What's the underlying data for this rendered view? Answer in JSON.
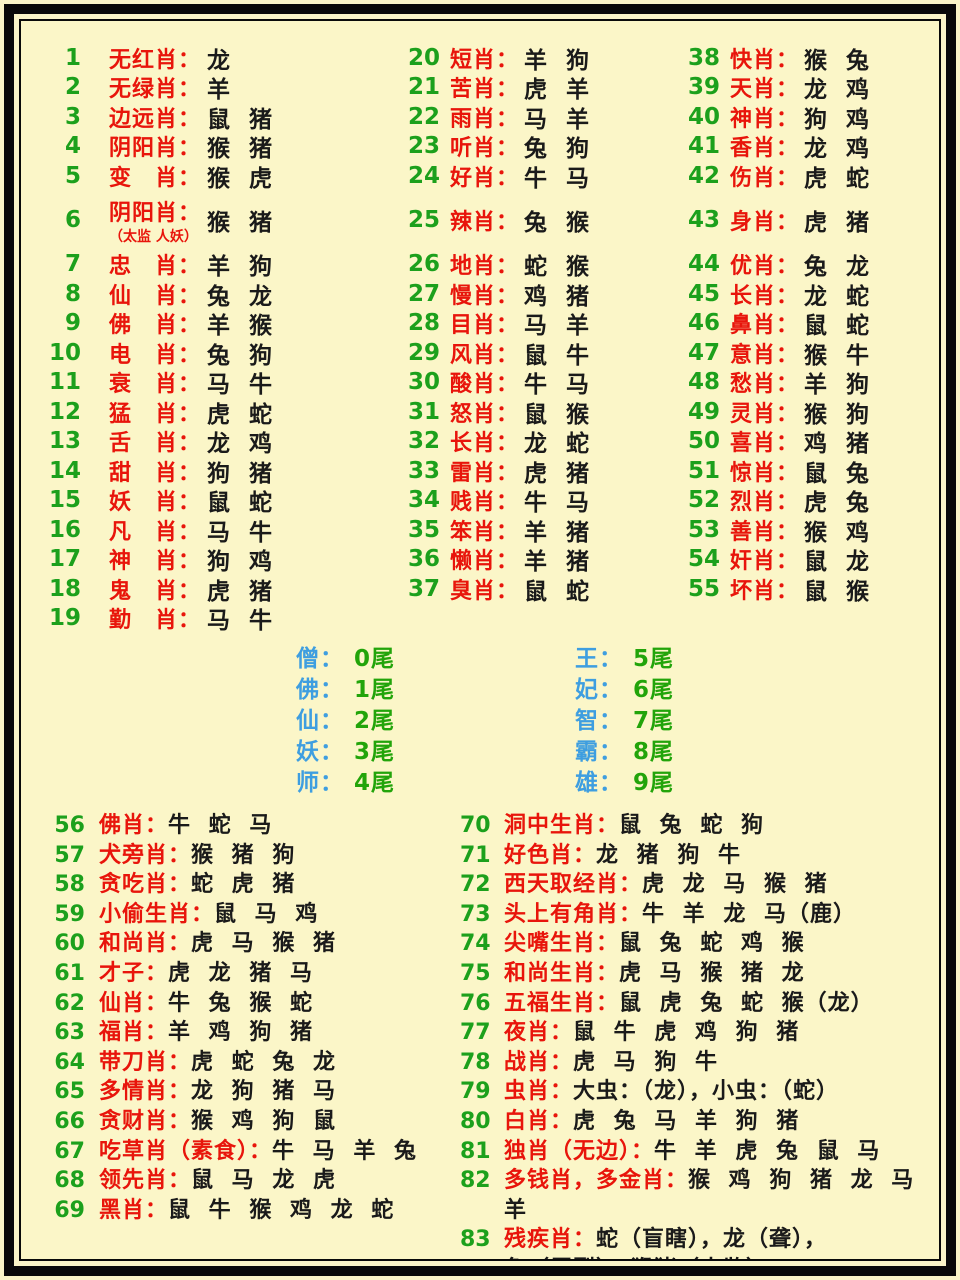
{
  "colors": {
    "background": "#FBF6C8",
    "frame_border": "#0A0A0A",
    "number_green": "#1CA01C",
    "label_red": "#E8150B",
    "value_black": "#1A1A1A",
    "tail_label_blue": "#3E9EE0",
    "tail_value_green": "#22A40A"
  },
  "top_columns": [
    {
      "items": [
        {
          "num": "1",
          "label": "无红肖：",
          "value": "龙"
        },
        {
          "num": "2",
          "label": "无绿肖：",
          "value": "羊"
        },
        {
          "num": "3",
          "label": "边远肖：",
          "value": "鼠 猪"
        },
        {
          "num": "4",
          "label": "阴阳肖：",
          "value": "猴 猪"
        },
        {
          "num": "5",
          "label": "变　肖：",
          "value": "猴 虎"
        },
        {
          "num": "6",
          "label": "阴阳肖：",
          "sub": "（太监 人妖）",
          "value": "猴 猪",
          "special": true
        },
        {
          "num": "7",
          "label": "忠　肖：",
          "value": "羊 狗"
        },
        {
          "num": "8",
          "label": "仙　肖：",
          "value": "兔 龙"
        },
        {
          "num": "9",
          "label": "佛　肖：",
          "value": "羊 猴"
        },
        {
          "num": "10",
          "label": "电　肖：",
          "value": "兔 狗"
        },
        {
          "num": "11",
          "label": "衰　肖：",
          "value": "马 牛"
        },
        {
          "num": "12",
          "label": "猛　肖：",
          "value": "虎 蛇"
        },
        {
          "num": "13",
          "label": "舌　肖：",
          "value": "龙 鸡"
        },
        {
          "num": "14",
          "label": "甜　肖：",
          "value": "狗 猪"
        },
        {
          "num": "15",
          "label": "妖　肖：",
          "value": "鼠 蛇"
        },
        {
          "num": "16",
          "label": "凡　肖：",
          "value": "马 牛"
        },
        {
          "num": "17",
          "label": "神　肖：",
          "value": "狗 鸡"
        },
        {
          "num": "18",
          "label": "鬼　肖：",
          "value": "虎 猪"
        },
        {
          "num": "19",
          "label": "勤　肖：",
          "value": "马 牛"
        }
      ]
    },
    {
      "items": [
        {
          "num": "20",
          "label": "短肖：",
          "value": "羊 狗"
        },
        {
          "num": "21",
          "label": "苦肖：",
          "value": "虎 羊"
        },
        {
          "num": "22",
          "label": "雨肖：",
          "value": "马 羊"
        },
        {
          "num": "23",
          "label": "听肖：",
          "value": "兔 狗"
        },
        {
          "num": "24",
          "label": "好肖：",
          "value": "牛 马"
        },
        {
          "num": "25",
          "label": "辣肖：",
          "value": "兔 猴",
          "special": true
        },
        {
          "num": "26",
          "label": "地肖：",
          "value": "蛇 猴"
        },
        {
          "num": "27",
          "label": "慢肖：",
          "value": "鸡 猪"
        },
        {
          "num": "28",
          "label": "目肖：",
          "value": "马 羊"
        },
        {
          "num": "29",
          "label": "风肖：",
          "value": "鼠 牛"
        },
        {
          "num": "30",
          "label": "酸肖：",
          "value": "牛 马"
        },
        {
          "num": "31",
          "label": "怒肖：",
          "value": "鼠 猴"
        },
        {
          "num": "32",
          "label": "长肖：",
          "value": "龙 蛇"
        },
        {
          "num": "33",
          "label": "雷肖：",
          "value": "虎 猪"
        },
        {
          "num": "34",
          "label": "贱肖：",
          "value": "牛 马"
        },
        {
          "num": "35",
          "label": "笨肖：",
          "value": "羊 猪"
        },
        {
          "num": "36",
          "label": "懒肖：",
          "value": "羊 猪"
        },
        {
          "num": "37",
          "label": "臭肖：",
          "value": "鼠 蛇"
        }
      ]
    },
    {
      "items": [
        {
          "num": "38",
          "label": "快肖：",
          "value": "猴 兔"
        },
        {
          "num": "39",
          "label": "天肖：",
          "value": "龙 鸡"
        },
        {
          "num": "40",
          "label": "神肖：",
          "value": "狗 鸡"
        },
        {
          "num": "41",
          "label": "香肖：",
          "value": "龙 鸡"
        },
        {
          "num": "42",
          "label": "伤肖：",
          "value": "虎 蛇"
        },
        {
          "num": "43",
          "label": "身肖：",
          "value": "虎 猪",
          "special": true
        },
        {
          "num": "44",
          "label": "优肖：",
          "value": "兔 龙"
        },
        {
          "num": "45",
          "label": "长肖：",
          "value": "龙 蛇"
        },
        {
          "num": "46",
          "label": "鼻肖：",
          "value": "鼠 蛇"
        },
        {
          "num": "47",
          "label": "意肖：",
          "value": "猴 牛"
        },
        {
          "num": "48",
          "label": "愁肖：",
          "value": "羊 狗"
        },
        {
          "num": "49",
          "label": "灵肖：",
          "value": "猴 狗"
        },
        {
          "num": "50",
          "label": "喜肖：",
          "value": "鸡 猪"
        },
        {
          "num": "51",
          "label": "惊肖：",
          "value": "鼠 兔"
        },
        {
          "num": "52",
          "label": "烈肖：",
          "value": "虎 兔"
        },
        {
          "num": "53",
          "label": "善肖：",
          "value": "猴 鸡"
        },
        {
          "num": "54",
          "label": "奸肖：",
          "value": "鼠 龙"
        },
        {
          "num": "55",
          "label": "坏肖：",
          "value": "鼠 猴"
        }
      ]
    }
  ],
  "tails": {
    "left": [
      {
        "label": "僧：",
        "value": "0尾"
      },
      {
        "label": "佛：",
        "value": "1尾"
      },
      {
        "label": "仙：",
        "value": "2尾"
      },
      {
        "label": "妖：",
        "value": "3尾"
      },
      {
        "label": "师：",
        "value": "4尾"
      }
    ],
    "right": [
      {
        "label": "王：",
        "value": "5尾"
      },
      {
        "label": "妃：",
        "value": "6尾"
      },
      {
        "label": "智：",
        "value": "7尾"
      },
      {
        "label": "霸：",
        "value": "8尾"
      },
      {
        "label": "雄：",
        "value": "9尾"
      }
    ]
  },
  "bottom_columns": [
    {
      "items": [
        {
          "num": "56",
          "label": "佛肖：",
          "value": "牛 蛇 马"
        },
        {
          "num": "57",
          "label": "犬旁肖：",
          "value": "猴 猪 狗"
        },
        {
          "num": "58",
          "label": "贪吃肖：",
          "value": "蛇 虎 猪"
        },
        {
          "num": "59",
          "label": "小偷生肖：",
          "value": "鼠 马 鸡"
        },
        {
          "num": "60",
          "label": "和尚肖：",
          "value": "虎 马 猴 猪"
        },
        {
          "num": "61",
          "label": "才子：",
          "value": "虎 龙 猪 马"
        },
        {
          "num": "62",
          "label": "仙肖：",
          "value": "牛 兔 猴 蛇"
        },
        {
          "num": "63",
          "label": "福肖：",
          "value": "羊 鸡 狗 猪"
        },
        {
          "num": "64",
          "label": "带刀肖：",
          "value": "虎 蛇 兔 龙"
        },
        {
          "num": "65",
          "label": "多情肖：",
          "value": "龙 狗 猪 马"
        },
        {
          "num": "66",
          "label": "贪财肖：",
          "value": "猴 鸡 狗 鼠"
        },
        {
          "num": "67",
          "label": "吃草肖（素食）：",
          "value": "牛 马 羊 兔"
        },
        {
          "num": "68",
          "label": "领先肖：",
          "value": "鼠 马 龙 虎"
        },
        {
          "num": "69",
          "label": "黑肖：",
          "value": "鼠 牛 猴 鸡 龙 蛇"
        }
      ]
    },
    {
      "items": [
        {
          "num": "70",
          "label": "洞中生肖：",
          "value": "鼠 兔 蛇 狗"
        },
        {
          "num": "71",
          "label": "好色肖：",
          "value": "龙 猪 狗 牛"
        },
        {
          "num": "72",
          "label": "西天取经肖：",
          "value": "虎 龙 马 猴 猪"
        },
        {
          "num": "73",
          "label": "头上有角肖：",
          "value": "牛 羊 龙 马（鹿）"
        },
        {
          "num": "74",
          "label": "尖嘴生肖：",
          "value": "鼠 兔 蛇 鸡 猴"
        },
        {
          "num": "75",
          "label": "和尚生肖：",
          "value": "虎 马 猴 猪 龙"
        },
        {
          "num": "76",
          "label": "五福生肖：",
          "value": "鼠 虎 兔 蛇 猴（龙）"
        },
        {
          "num": "77",
          "label": "夜肖：",
          "value": "鼠 牛 虎 鸡 狗 猪"
        },
        {
          "num": "78",
          "label": "战肖：",
          "value": "虎 马 狗 牛"
        },
        {
          "num": "79",
          "label": "虫肖：",
          "value": "大虫：（龙），小虫：（蛇）"
        },
        {
          "num": "80",
          "label": "白肖：",
          "value": "虎 兔 马 羊 狗 猪"
        },
        {
          "num": "81",
          "label": "独肖（无边）：",
          "value": "牛 羊 虎 兔 鼠 马"
        },
        {
          "num": "82",
          "label": "多钱肖，多金肖：",
          "value": "猴 鸡 狗 猪 龙 马 羊"
        },
        {
          "num": "83",
          "label": "残疾肖：",
          "value": "蛇（盲瞎），龙（聋），",
          "value2": "兔（唇裂），猴猪（太监）"
        }
      ]
    }
  ]
}
